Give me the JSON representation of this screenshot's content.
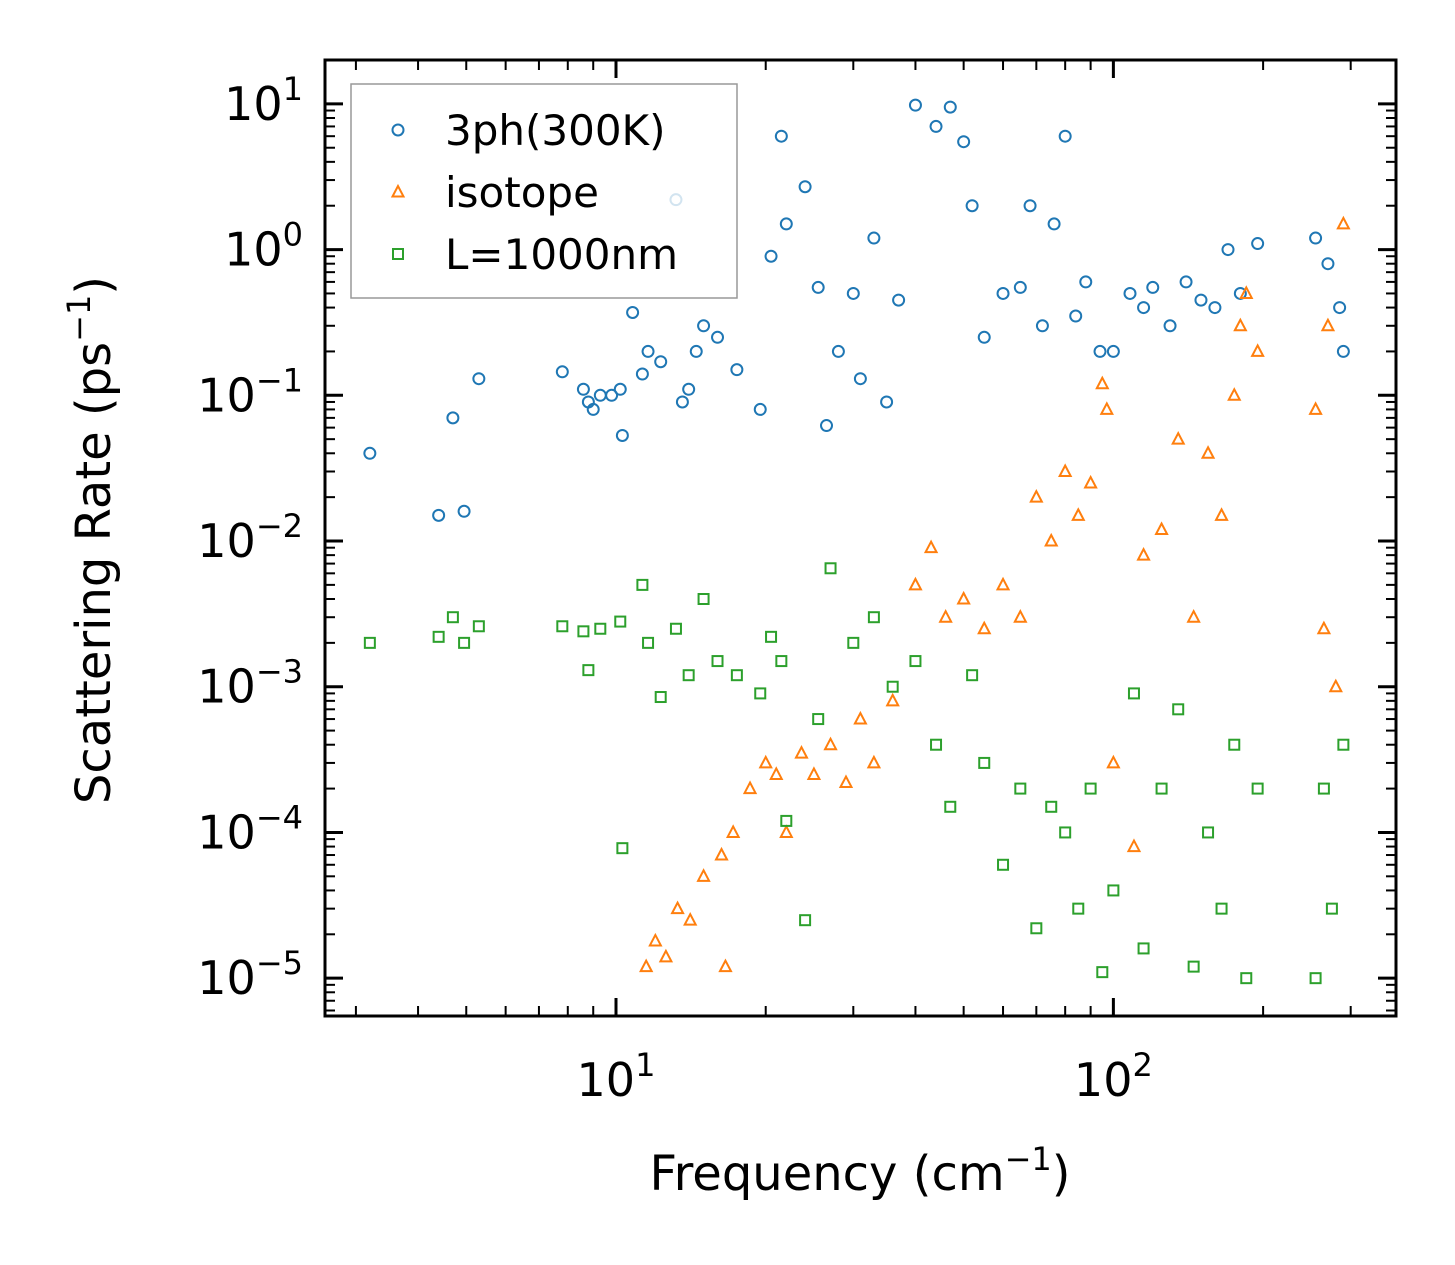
{
  "chart_data": {
    "type": "scatter",
    "xscale": "log",
    "yscale": "log",
    "xlabel": "Frequency (cm",
    "xlabel_sup": "−1",
    "xlabel_tail": ")",
    "ylabel": "Scattering Rate (ps",
    "ylabel_sup": "−1",
    "ylabel_tail": ")",
    "xlim": [
      2.6,
      370
    ],
    "ylim": [
      5.5e-06,
      20
    ],
    "x_major_ticks": [
      10,
      100
    ],
    "x_tick_base": [
      "10",
      "10"
    ],
    "x_tick_exp": [
      "1",
      "2"
    ],
    "y_major_ticks": [
      10,
      1,
      0.1,
      0.01,
      0.001,
      0.0001,
      1e-05
    ],
    "y_tick_base": [
      "10",
      "10",
      "10",
      "10",
      "10",
      "10",
      "10"
    ],
    "y_tick_exp": [
      "1",
      "0",
      "−1",
      "−2",
      "−3",
      "−4",
      "−5"
    ],
    "legend_position": "top-left",
    "series": [
      {
        "name": "3ph(300K)",
        "marker": "circle",
        "color": "#1f77b4",
        "points": [
          [
            3.2,
            0.04
          ],
          [
            4.4,
            0.015
          ],
          [
            4.7,
            0.07
          ],
          [
            4.95,
            0.016
          ],
          [
            5.3,
            0.13
          ],
          [
            7.8,
            0.145
          ],
          [
            8.6,
            0.11
          ],
          [
            8.8,
            0.09
          ],
          [
            9.0,
            0.08
          ],
          [
            9.3,
            0.1
          ],
          [
            9.8,
            0.1
          ],
          [
            10.2,
            0.11
          ],
          [
            10.3,
            0.053
          ],
          [
            10.8,
            0.37
          ],
          [
            11.3,
            0.14
          ],
          [
            11.6,
            0.2
          ],
          [
            12.3,
            0.17
          ],
          [
            13.2,
            2.2
          ],
          [
            13.6,
            0.09
          ],
          [
            14.0,
            0.11
          ],
          [
            14.5,
            0.2
          ],
          [
            15.0,
            0.3
          ],
          [
            16.0,
            0.25
          ],
          [
            17.5,
            0.15
          ],
          [
            19.5,
            0.08
          ],
          [
            20.5,
            0.9
          ],
          [
            21.5,
            6.0
          ],
          [
            22.0,
            1.5
          ],
          [
            24.0,
            2.7
          ],
          [
            25.5,
            0.55
          ],
          [
            26.5,
            0.062
          ],
          [
            28.0,
            0.2
          ],
          [
            30.0,
            0.5
          ],
          [
            31.0,
            0.13
          ],
          [
            33.0,
            1.2
          ],
          [
            35.0,
            0.09
          ],
          [
            37.0,
            0.45
          ],
          [
            40.0,
            9.8
          ],
          [
            44.0,
            7.0
          ],
          [
            47.0,
            9.5
          ],
          [
            50.0,
            5.5
          ],
          [
            52.0,
            2.0
          ],
          [
            55.0,
            0.25
          ],
          [
            60.0,
            0.5
          ],
          [
            65.0,
            0.55
          ],
          [
            68.0,
            2.0
          ],
          [
            72.0,
            0.3
          ],
          [
            76.0,
            1.5
          ],
          [
            80.0,
            6.0
          ],
          [
            84.0,
            0.35
          ],
          [
            88.0,
            0.6
          ],
          [
            94.0,
            0.2
          ],
          [
            100.0,
            0.2
          ],
          [
            108.0,
            0.5
          ],
          [
            115.0,
            0.4
          ],
          [
            120.0,
            0.55
          ],
          [
            130.0,
            0.3
          ],
          [
            140.0,
            0.6
          ],
          [
            150.0,
            0.45
          ],
          [
            160.0,
            0.4
          ],
          [
            170.0,
            1.0
          ],
          [
            180.0,
            0.5
          ],
          [
            195.0,
            1.1
          ],
          [
            255.0,
            1.2
          ],
          [
            270.0,
            0.8
          ],
          [
            285.0,
            0.4
          ],
          [
            290.0,
            0.2
          ]
        ]
      },
      {
        "name": "isotope",
        "marker": "triangle",
        "color": "#ff7f0e",
        "points": [
          [
            11.5,
            1.2e-05
          ],
          [
            12.0,
            1.8e-05
          ],
          [
            12.6,
            1.4e-05
          ],
          [
            13.3,
            3e-05
          ],
          [
            14.1,
            2.5e-05
          ],
          [
            15.0,
            5e-05
          ],
          [
            16.6,
            1.2e-05
          ],
          [
            16.3,
            7e-05
          ],
          [
            17.2,
            0.0001
          ],
          [
            18.6,
            0.0002
          ],
          [
            20.0,
            0.0003
          ],
          [
            21.0,
            0.00025
          ],
          [
            22.0,
            0.0001
          ],
          [
            23.6,
            0.00035
          ],
          [
            25.0,
            0.00025
          ],
          [
            27.0,
            0.0004
          ],
          [
            29.0,
            0.00022
          ],
          [
            31.0,
            0.0006
          ],
          [
            33.0,
            0.0003
          ],
          [
            36.0,
            0.0008
          ],
          [
            40.0,
            0.005
          ],
          [
            43.0,
            0.009
          ],
          [
            46.0,
            0.003
          ],
          [
            50.0,
            0.004
          ],
          [
            55.0,
            0.0025
          ],
          [
            60.0,
            0.005
          ],
          [
            65.0,
            0.003
          ],
          [
            70.0,
            0.02
          ],
          [
            75.0,
            0.01
          ],
          [
            80.0,
            0.03
          ],
          [
            85.0,
            0.015
          ],
          [
            90.0,
            0.025
          ],
          [
            95.0,
            0.12
          ],
          [
            97.0,
            0.08
          ],
          [
            100.0,
            0.0003
          ],
          [
            110.0,
            8e-05
          ],
          [
            115.0,
            0.008
          ],
          [
            125.0,
            0.012
          ],
          [
            135.0,
            0.05
          ],
          [
            145.0,
            0.003
          ],
          [
            155.0,
            0.04
          ],
          [
            165.0,
            0.015
          ],
          [
            175.0,
            0.1
          ],
          [
            180.0,
            0.3
          ],
          [
            185.0,
            0.5
          ],
          [
            195.0,
            0.2
          ],
          [
            255.0,
            0.08
          ],
          [
            265.0,
            0.0025
          ],
          [
            270.0,
            0.3
          ],
          [
            280.0,
            0.001
          ],
          [
            290.0,
            1.5
          ]
        ]
      },
      {
        "name": "L=1000nm",
        "marker": "square",
        "color": "#2ca02c",
        "points": [
          [
            3.2,
            0.002
          ],
          [
            4.4,
            0.0022
          ],
          [
            4.7,
            0.003
          ],
          [
            4.95,
            0.002
          ],
          [
            5.3,
            0.0026
          ],
          [
            7.8,
            0.0026
          ],
          [
            8.6,
            0.0024
          ],
          [
            8.8,
            0.0013
          ],
          [
            9.3,
            0.0025
          ],
          [
            10.2,
            0.0028
          ],
          [
            10.3,
            7.8e-05
          ],
          [
            11.3,
            0.005
          ],
          [
            11.6,
            0.002
          ],
          [
            12.3,
            0.00085
          ],
          [
            13.2,
            0.0025
          ],
          [
            14.0,
            0.0012
          ],
          [
            15.0,
            0.004
          ],
          [
            16.0,
            0.0015
          ],
          [
            17.5,
            0.0012
          ],
          [
            19.5,
            0.0009
          ],
          [
            20.5,
            0.0022
          ],
          [
            21.5,
            0.0015
          ],
          [
            22.0,
            0.00012
          ],
          [
            24.0,
            2.5e-05
          ],
          [
            25.5,
            0.0006
          ],
          [
            27.0,
            0.0065
          ],
          [
            30.0,
            0.002
          ],
          [
            33.0,
            0.003
          ],
          [
            36.0,
            0.001
          ],
          [
            40.0,
            0.0015
          ],
          [
            44.0,
            0.0004
          ],
          [
            47.0,
            0.00015
          ],
          [
            52.0,
            0.0012
          ],
          [
            55.0,
            0.0003
          ],
          [
            60.0,
            6e-05
          ],
          [
            65.0,
            0.0002
          ],
          [
            70.0,
            2.2e-05
          ],
          [
            75.0,
            0.00015
          ],
          [
            80.0,
            0.0001
          ],
          [
            85.0,
            3e-05
          ],
          [
            90.0,
            0.0002
          ],
          [
            95.0,
            1.1e-05
          ],
          [
            100.0,
            4e-05
          ],
          [
            110.0,
            0.0009
          ],
          [
            115.0,
            1.6e-05
          ],
          [
            125.0,
            0.0002
          ],
          [
            135.0,
            0.0007
          ],
          [
            145.0,
            1.2e-05
          ],
          [
            155.0,
            0.0001
          ],
          [
            165.0,
            3e-05
          ],
          [
            175.0,
            0.0004
          ],
          [
            185.0,
            1e-05
          ],
          [
            195.0,
            0.0002
          ],
          [
            255.0,
            1e-05
          ],
          [
            265.0,
            0.0002
          ],
          [
            275.0,
            3e-05
          ],
          [
            290.0,
            0.0004
          ]
        ]
      }
    ]
  }
}
